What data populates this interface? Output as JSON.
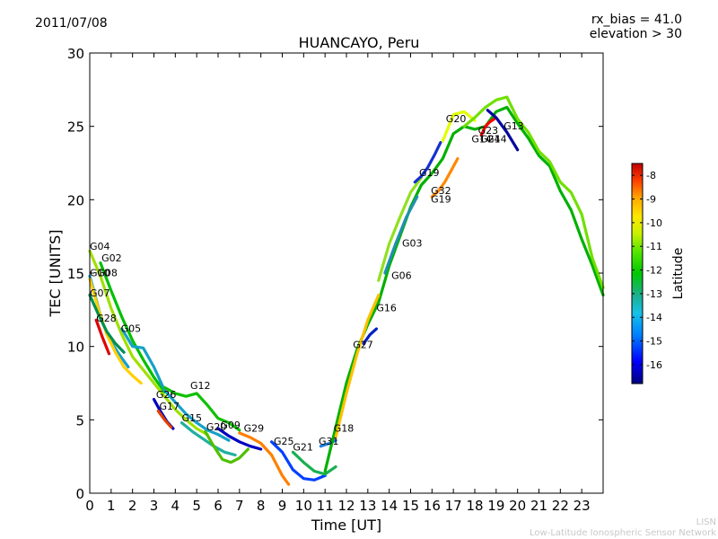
{
  "header": {
    "date": "2011/07/08",
    "rx_bias": "rx_bias = 41.0",
    "elevation": "elevation > 30"
  },
  "footer": {
    "line1": "LISN",
    "line2": "Low-Latitude Ionospheric Sensor Network"
  },
  "chart_data": {
    "type": "line",
    "title": "HUANCAYO, Peru",
    "xlabel": "Time [UT]",
    "ylabel": "TEC [UNITS]",
    "xlim": [
      0,
      24
    ],
    "ylim": [
      0,
      30
    ],
    "xticks": [
      0,
      1,
      2,
      3,
      4,
      5,
      6,
      7,
      8,
      9,
      10,
      11,
      12,
      13,
      14,
      15,
      16,
      17,
      18,
      19,
      20,
      21,
      22,
      23
    ],
    "yticks": [
      0,
      5,
      10,
      15,
      20,
      25,
      30
    ],
    "colorbar": {
      "label": "Latitude",
      "min": -16.8,
      "max": -7.5,
      "ticks": [
        -8,
        -9,
        -10,
        -11,
        -12,
        -13,
        -14,
        -15,
        -16
      ],
      "colors": [
        "#00007f",
        "#0000ff",
        "#0080ff",
        "#15c2e8",
        "#1cd08c",
        "#00c800",
        "#55e600",
        "#c8f000",
        "#ffe600",
        "#ffaa00",
        "#ff5500",
        "#e00000",
        "#7f0000"
      ]
    },
    "series": [
      {
        "name": "G04",
        "color": "#a0e000",
        "x": [
          0,
          0.5,
          1,
          1.5,
          2,
          2.5,
          3,
          3.5,
          4,
          4.5,
          5,
          5.5
        ],
        "y": [
          16.5,
          14.8,
          12.6,
          10.8,
          9.3,
          8.4,
          7.5,
          6.6,
          5.7,
          5.0,
          4.4,
          4.0
        ]
      },
      {
        "name": "G02",
        "color": "#00c000",
        "x": [
          0.5,
          1,
          1.5,
          2,
          2.5,
          3,
          3.5
        ],
        "y": [
          15.7,
          13.8,
          12.0,
          10.4,
          9.1,
          7.9,
          6.9
        ]
      },
      {
        "name": "G10",
        "color": "#15a0d0",
        "x": [
          0,
          0.3,
          0.6,
          1,
          1.4,
          1.8
        ],
        "y": [
          14.8,
          13.2,
          11.6,
          10.3,
          9.4,
          8.6
        ]
      },
      {
        "name": "G08",
        "color": "#ffd000",
        "x": [
          0,
          0.4,
          0.8,
          1.2,
          1.6,
          2.0,
          2.4
        ],
        "y": [
          14.6,
          12.6,
          10.8,
          9.6,
          8.6,
          8.0,
          7.5
        ]
      },
      {
        "name": "G07",
        "color": "#008f50",
        "x": [
          0,
          0.4,
          0.8,
          1.2,
          1.6
        ],
        "y": [
          13.5,
          12.2,
          11.0,
          10.2,
          9.6
        ]
      },
      {
        "name": "G28",
        "color": "#e00000",
        "x": [
          0.3,
          0.6,
          0.9
        ],
        "y": [
          11.8,
          10.6,
          9.5
        ]
      },
      {
        "name": "G05",
        "color": "#15a0c8",
        "x": [
          1.5,
          2,
          2.5,
          3,
          3.5,
          4,
          4.5,
          5,
          5.5,
          6,
          6.5
        ],
        "y": [
          11.2,
          10.0,
          9.9,
          8.6,
          7.0,
          6.2,
          5.4,
          4.8,
          4.3,
          4.0,
          3.6
        ]
      },
      {
        "name": "G12",
        "color": "#10c000",
        "x": [
          3.5,
          4,
          4.5,
          5,
          5.5,
          6,
          6.5,
          7
        ],
        "y": [
          7.2,
          6.8,
          6.6,
          6.8,
          6.0,
          5.1,
          4.8,
          4.3
        ]
      },
      {
        "name": "G26",
        "color": "#0000c0",
        "x": [
          3.0,
          3.3,
          3.6,
          3.9
        ],
        "y": [
          6.4,
          5.6,
          4.9,
          4.4
        ]
      },
      {
        "name": "G17",
        "color": "#e04000",
        "x": [
          3.2,
          3.5,
          3.8
        ],
        "y": [
          5.6,
          5.0,
          4.5
        ]
      },
      {
        "name": "G15",
        "color": "#20b0a0",
        "x": [
          4.3,
          4.8,
          5.3,
          5.8,
          6.3,
          6.8
        ],
        "y": [
          4.8,
          4.2,
          3.7,
          3.2,
          2.8,
          2.6
        ]
      },
      {
        "name": "G20",
        "color": "#50c000",
        "x": [
          5.4,
          5.8,
          6.2,
          6.6,
          7.0,
          7.4
        ],
        "y": [
          4.2,
          3.2,
          2.3,
          2.1,
          2.4,
          3.0
        ]
      },
      {
        "name": "G09",
        "color": "#0000c0",
        "x": [
          6.0,
          6.5,
          7.0,
          7.5,
          8.0
        ],
        "y": [
          4.4,
          3.9,
          3.5,
          3.2,
          3.0
        ]
      },
      {
        "name": "G29",
        "color": "#ff8000",
        "x": [
          7.0,
          7.5,
          8.0,
          8.5,
          9.0,
          9.3
        ],
        "y": [
          4.1,
          3.8,
          3.4,
          2.6,
          1.2,
          0.6
        ]
      },
      {
        "name": "G25",
        "color": "#0040ff",
        "x": [
          8.5,
          9,
          9.5,
          10,
          10.5,
          11
        ],
        "y": [
          3.5,
          2.8,
          1.6,
          1.0,
          0.9,
          1.2
        ]
      },
      {
        "name": "G21",
        "color": "#18b050",
        "x": [
          9.5,
          10,
          10.5,
          11,
          11.5
        ],
        "y": [
          2.8,
          2.1,
          1.5,
          1.3,
          1.8
        ]
      },
      {
        "name": "G31",
        "color": "#2080e0",
        "x": [
          10.8,
          11.2,
          11.5
        ],
        "y": [
          3.2,
          3.4,
          3.6
        ]
      },
      {
        "name": "G18",
        "color": "#00b000",
        "x": [
          11,
          11.5,
          12,
          12.5,
          13,
          13.5,
          14,
          14.5,
          15,
          15.5,
          16,
          16.5,
          17,
          17.5,
          18,
          18.5,
          19,
          19.5,
          20,
          20.5,
          21,
          21.5,
          22,
          22.5,
          23,
          23.5,
          24
        ],
        "y": [
          1.5,
          4.5,
          7.5,
          9.8,
          11.5,
          13.0,
          15.5,
          17.5,
          19.5,
          21.0,
          21.8,
          22.8,
          24.5,
          25.0,
          24.8,
          25.0,
          26.0,
          26.3,
          25.2,
          24.2,
          23.0,
          22.3,
          20.6,
          19.3,
          17.3,
          15.5,
          13.5
        ]
      },
      {
        "name": "G27",
        "color": "#ffc000",
        "x": [
          11.5,
          12,
          12.5,
          13,
          13.5
        ],
        "y": [
          3.8,
          6.8,
          9.5,
          11.8,
          13.5
        ]
      },
      {
        "name": "G16",
        "color": "#0020c0",
        "x": [
          12.8,
          13.1,
          13.4
        ],
        "y": [
          10.2,
          10.8,
          11.2
        ]
      },
      {
        "name": "G03",
        "color": "#90e020",
        "x": [
          13.5,
          14,
          14.5,
          15,
          15.5
        ],
        "y": [
          14.5,
          17.0,
          18.8,
          20.5,
          21.5
        ]
      },
      {
        "name": "G06",
        "color": "#2090b0",
        "x": [
          13.8,
          14.3,
          14.8,
          15.3
        ],
        "y": [
          15.0,
          17.0,
          18.8,
          20.2
        ]
      },
      {
        "name": "G19",
        "color": "#1530d0",
        "x": [
          15.2,
          15.5,
          15.8,
          16.1,
          16.4
        ],
        "y": [
          21.2,
          21.6,
          22.2,
          23.0,
          23.9
        ]
      },
      {
        "name": "G32",
        "color": "#ff8800",
        "x": [
          16.0,
          16.3,
          16.6,
          16.9,
          17.2
        ],
        "y": [
          20.2,
          20.6,
          21.2,
          22.0,
          22.8
        ]
      },
      {
        "name": "G23",
        "color": "#e0ff00",
        "x": [
          16.5,
          17,
          17.5,
          18
        ],
        "y": [
          24.0,
          25.8,
          26.0,
          25.4
        ]
      },
      {
        "name": "G13",
        "color": "#70e000",
        "x": [
          17.5,
          18,
          18.5,
          19,
          19.5,
          20,
          20.5,
          21,
          21.5,
          22,
          22.5,
          23,
          23.5,
          24
        ],
        "y": [
          25.0,
          25.6,
          26.3,
          26.8,
          27.0,
          25.5,
          24.6,
          23.3,
          22.6,
          21.2,
          20.5,
          19.0,
          16.0,
          14.0
        ]
      },
      {
        "name": "G24",
        "color": "#ff0000",
        "x": [
          18.3,
          18.5,
          18.7,
          18.9
        ],
        "y": [
          24.4,
          25.0,
          25.3,
          25.5
        ]
      },
      {
        "name": "G14",
        "color": "#0000a0",
        "x": [
          18.6,
          19,
          19.5,
          20
        ],
        "y": [
          26.1,
          25.6,
          24.6,
          23.4
        ]
      }
    ],
    "labels": [
      {
        "text": "G04",
        "x": 0.0,
        "y": 16.6
      },
      {
        "text": "G02",
        "x": 0.55,
        "y": 15.8
      },
      {
        "text": "G10",
        "x": 0.0,
        "y": 14.8
      },
      {
        "text": "G08",
        "x": 0.35,
        "y": 14.8
      },
      {
        "text": "G07",
        "x": 0.0,
        "y": 13.4
      },
      {
        "text": "G28",
        "x": 0.3,
        "y": 11.7
      },
      {
        "text": "G05",
        "x": 1.45,
        "y": 11.0
      },
      {
        "text": "G12",
        "x": 4.7,
        "y": 7.1
      },
      {
        "text": "G26",
        "x": 3.1,
        "y": 6.5
      },
      {
        "text": "G17",
        "x": 3.25,
        "y": 5.7
      },
      {
        "text": "G15",
        "x": 4.3,
        "y": 4.9
      },
      {
        "text": "G20",
        "x": 5.45,
        "y": 4.3
      },
      {
        "text": "G09",
        "x": 6.1,
        "y": 4.4
      },
      {
        "text": "G29",
        "x": 7.2,
        "y": 4.2
      },
      {
        "text": "G25",
        "x": 8.6,
        "y": 3.3
      },
      {
        "text": "G21",
        "x": 9.5,
        "y": 2.9
      },
      {
        "text": "G31",
        "x": 10.7,
        "y": 3.3
      },
      {
        "text": "G18",
        "x": 11.4,
        "y": 4.2
      },
      {
        "text": "G27",
        "x": 12.3,
        "y": 9.9
      },
      {
        "text": "G16",
        "x": 13.4,
        "y": 12.4
      },
      {
        "text": "G06",
        "x": 14.1,
        "y": 14.6
      },
      {
        "text": "G03",
        "x": 14.6,
        "y": 16.8
      },
      {
        "text": "G19",
        "x": 15.4,
        "y": 21.6
      },
      {
        "text": "G32",
        "x": 15.95,
        "y": 20.4
      },
      {
        "text": "G19",
        "x": 15.95,
        "y": 19.8
      },
      {
        "text": "G20",
        "x": 16.65,
        "y": 25.3
      },
      {
        "text": "G23",
        "x": 18.15,
        "y": 24.5
      },
      {
        "text": "G14",
        "x": 17.85,
        "y": 23.9
      },
      {
        "text": "G24",
        "x": 18.25,
        "y": 23.9
      },
      {
        "text": "G14",
        "x": 18.55,
        "y": 23.9
      },
      {
        "text": "G13",
        "x": 19.35,
        "y": 24.8
      }
    ]
  }
}
